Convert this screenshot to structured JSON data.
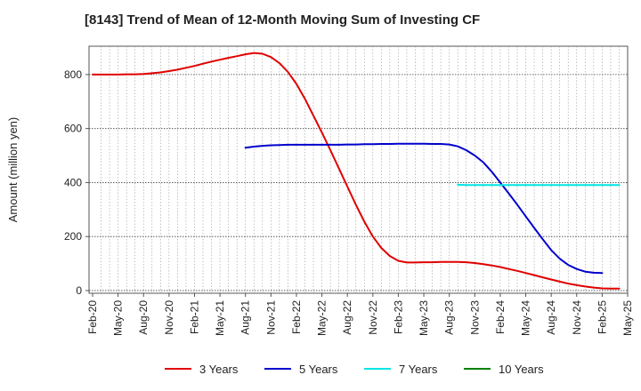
{
  "chart_data": {
    "type": "line",
    "title": "[8143]  Trend of Mean of 12-Month Moving Sum of Investing CF",
    "xlabel": "",
    "ylabel": "Amount (million yen)",
    "ylim": [
      -10,
      905
    ],
    "yticks": [
      0,
      200,
      400,
      600,
      800
    ],
    "x_tick_labels": [
      "Feb-20",
      "May-20",
      "Aug-20",
      "Nov-20",
      "Feb-21",
      "May-21",
      "Aug-21",
      "Nov-21",
      "Feb-22",
      "May-22",
      "Aug-22",
      "Nov-22",
      "Feb-23",
      "May-23",
      "Aug-23",
      "Nov-23",
      "Feb-24",
      "May-24",
      "Aug-24",
      "Nov-24",
      "Feb-25",
      "May-25"
    ],
    "x_start": "Feb-20",
    "x_months": 63,
    "grid": true,
    "legend_position": "bottom",
    "series": [
      {
        "name": "3 Years",
        "color": "#e00000",
        "start_month": 0,
        "values": [
          800,
          800,
          800,
          800,
          801,
          801,
          802,
          805,
          808,
          813,
          818,
          825,
          832,
          840,
          848,
          855,
          862,
          868,
          875,
          880,
          877,
          865,
          842,
          810,
          765,
          710,
          648,
          585,
          520,
          452,
          385,
          318,
          255,
          200,
          158,
          128,
          110,
          104,
          104,
          105,
          105,
          106,
          106,
          106,
          105,
          102,
          98,
          93,
          87,
          80,
          73,
          65,
          57,
          49,
          41,
          33,
          26,
          20,
          15,
          11,
          8,
          7,
          7
        ]
      },
      {
        "name": "5 Years",
        "color": "#0000cc",
        "start_month": 18,
        "values": [
          529,
          533,
          536,
          538,
          539,
          540,
          540,
          540,
          540,
          540,
          540,
          540,
          541,
          541,
          542,
          542,
          543,
          543,
          544,
          544,
          544,
          544,
          543,
          543,
          541,
          534,
          520,
          500,
          475,
          440,
          400,
          360,
          318,
          275,
          232,
          190,
          150,
          118,
          95,
          80,
          70,
          66,
          65
        ]
      },
      {
        "name": "7 Years",
        "color": "#00e5e5",
        "start_month": 43,
        "values": [
          392,
          391,
          391,
          391,
          391,
          391,
          391,
          391,
          391,
          391,
          391,
          391,
          391,
          391,
          391,
          391,
          391,
          391,
          391,
          391
        ]
      },
      {
        "name": "10 Years",
        "color": "#008000",
        "start_month": 0,
        "values": []
      }
    ]
  }
}
